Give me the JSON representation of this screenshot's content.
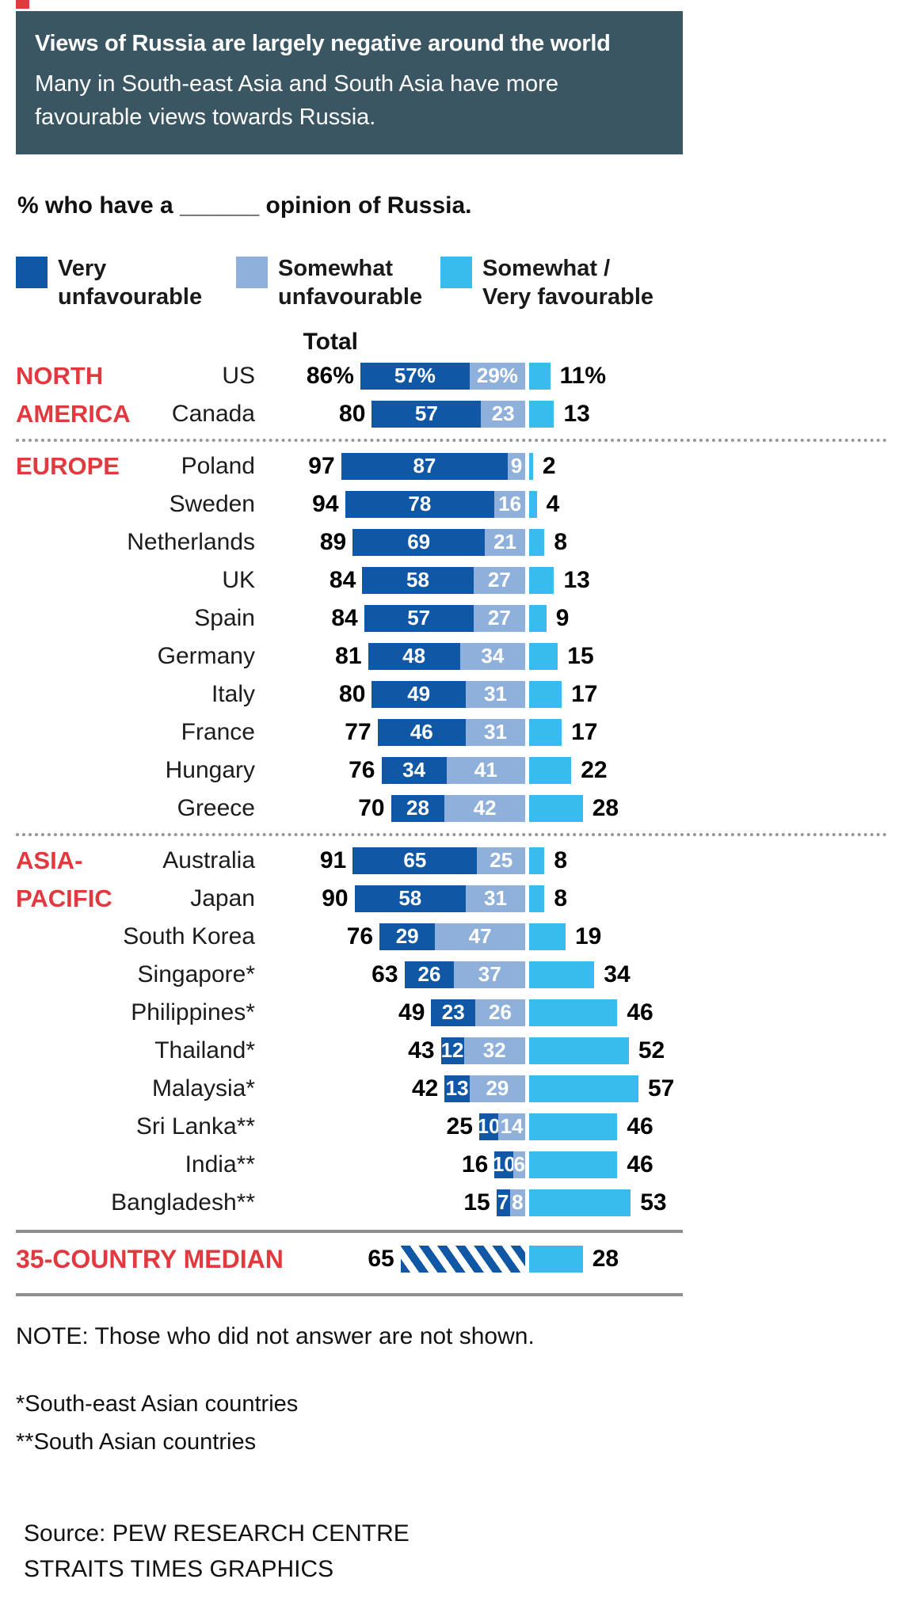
{
  "colors": {
    "header_bg": "#3a5662",
    "accent_red": "#e13a3e",
    "very_unfavourable": "#1057a6",
    "somewhat_unfavourable": "#8fb0da",
    "favourable": "#38bcee"
  },
  "header": {
    "title": "Views of Russia are largely negative around the world",
    "subtitle": "Many in South-east Asia and South Asia have more favourable views towards Russia."
  },
  "question": "% who have a ______ opinion of Russia.",
  "legend": {
    "items": [
      {
        "line1": "Very",
        "line2": "unfavourable",
        "color": "#1057a6"
      },
      {
        "line1": "Somewhat",
        "line2": "unfavourable",
        "color": "#8fb0da"
      },
      {
        "line1": "Somewhat /",
        "line2": "Very favourable",
        "color": "#38bcee"
      }
    ]
  },
  "chart_data": {
    "type": "bar",
    "variant": "diverging-stacked-horizontal",
    "title": "Views of Russia are largely negative around the world",
    "unit": "%",
    "xlim": [
      0,
      100
    ],
    "legend_position": "top",
    "total_header": "Total",
    "series_names": [
      "Very unfavourable",
      "Somewhat unfavourable",
      "Somewhat / Very favourable"
    ],
    "groups": [
      {
        "region": "NORTH AMERICA",
        "region_lines": [
          "NORTH",
          "AMERICA"
        ],
        "rows": [
          {
            "country": "US",
            "total": 86,
            "very": 57,
            "somewhat": 29,
            "favourable": 11,
            "display": {
              "total": "86%",
              "very": "57%",
              "somewhat": "29%",
              "favourable": "11%"
            }
          },
          {
            "country": "Canada",
            "total": 80,
            "very": 57,
            "somewhat": 23,
            "favourable": 13
          }
        ]
      },
      {
        "region": "EUROPE",
        "region_lines": [
          "EUROPE"
        ],
        "rows": [
          {
            "country": "Poland",
            "total": 97,
            "very": 87,
            "somewhat": 9,
            "favourable": 2
          },
          {
            "country": "Sweden",
            "total": 94,
            "very": 78,
            "somewhat": 16,
            "favourable": 4
          },
          {
            "country": "Netherlands",
            "total": 89,
            "very": 69,
            "somewhat": 21,
            "favourable": 8
          },
          {
            "country": "UK",
            "total": 84,
            "very": 58,
            "somewhat": 27,
            "favourable": 13
          },
          {
            "country": "Spain",
            "total": 84,
            "very": 57,
            "somewhat": 27,
            "favourable": 9
          },
          {
            "country": "Germany",
            "total": 81,
            "very": 48,
            "somewhat": 34,
            "favourable": 15
          },
          {
            "country": "Italy",
            "total": 80,
            "very": 49,
            "somewhat": 31,
            "favourable": 17
          },
          {
            "country": "France",
            "total": 77,
            "very": 46,
            "somewhat": 31,
            "favourable": 17
          },
          {
            "country": "Hungary",
            "total": 76,
            "very": 34,
            "somewhat": 41,
            "favourable": 22
          },
          {
            "country": "Greece",
            "total": 70,
            "very": 28,
            "somewhat": 42,
            "favourable": 28
          }
        ]
      },
      {
        "region": "ASIA-PACIFIC",
        "region_lines": [
          "ASIA-",
          "PACIFIC"
        ],
        "rows": [
          {
            "country": "Australia",
            "total": 91,
            "very": 65,
            "somewhat": 25,
            "favourable": 8
          },
          {
            "country": "Japan",
            "total": 90,
            "very": 58,
            "somewhat": 31,
            "favourable": 8
          },
          {
            "country": "South Korea",
            "total": 76,
            "very": 29,
            "somewhat": 47,
            "favourable": 19
          },
          {
            "country": "Singapore*",
            "total": 63,
            "very": 26,
            "somewhat": 37,
            "favourable": 34
          },
          {
            "country": "Philippines*",
            "total": 49,
            "very": 23,
            "somewhat": 26,
            "favourable": 46
          },
          {
            "country": "Thailand*",
            "total": 43,
            "very": 12,
            "somewhat": 32,
            "favourable": 52
          },
          {
            "country": "Malaysia*",
            "total": 42,
            "very": 13,
            "somewhat": 29,
            "favourable": 57
          },
          {
            "country": "Sri Lanka**",
            "total": 25,
            "very": 10,
            "somewhat": 14,
            "favourable": 46
          },
          {
            "country": "India**",
            "total": 16,
            "very": 10,
            "somewhat": 6,
            "favourable": 46
          },
          {
            "country": "Bangladesh**",
            "total": 15,
            "very": 7,
            "somewhat": 8,
            "favourable": 53
          }
        ]
      }
    ],
    "median": {
      "label": "35-COUNTRY MEDIAN",
      "unfavourable_total": 65,
      "favourable": 28
    }
  },
  "notes": {
    "note": "NOTE: Those who did not answer are not shown.",
    "footnote1": "*South-east Asian countries",
    "footnote2": "**South Asian countries"
  },
  "source": {
    "line1": "Source: PEW RESEARCH CENTRE",
    "line2": "STRAITS TIMES GRAPHICS"
  }
}
